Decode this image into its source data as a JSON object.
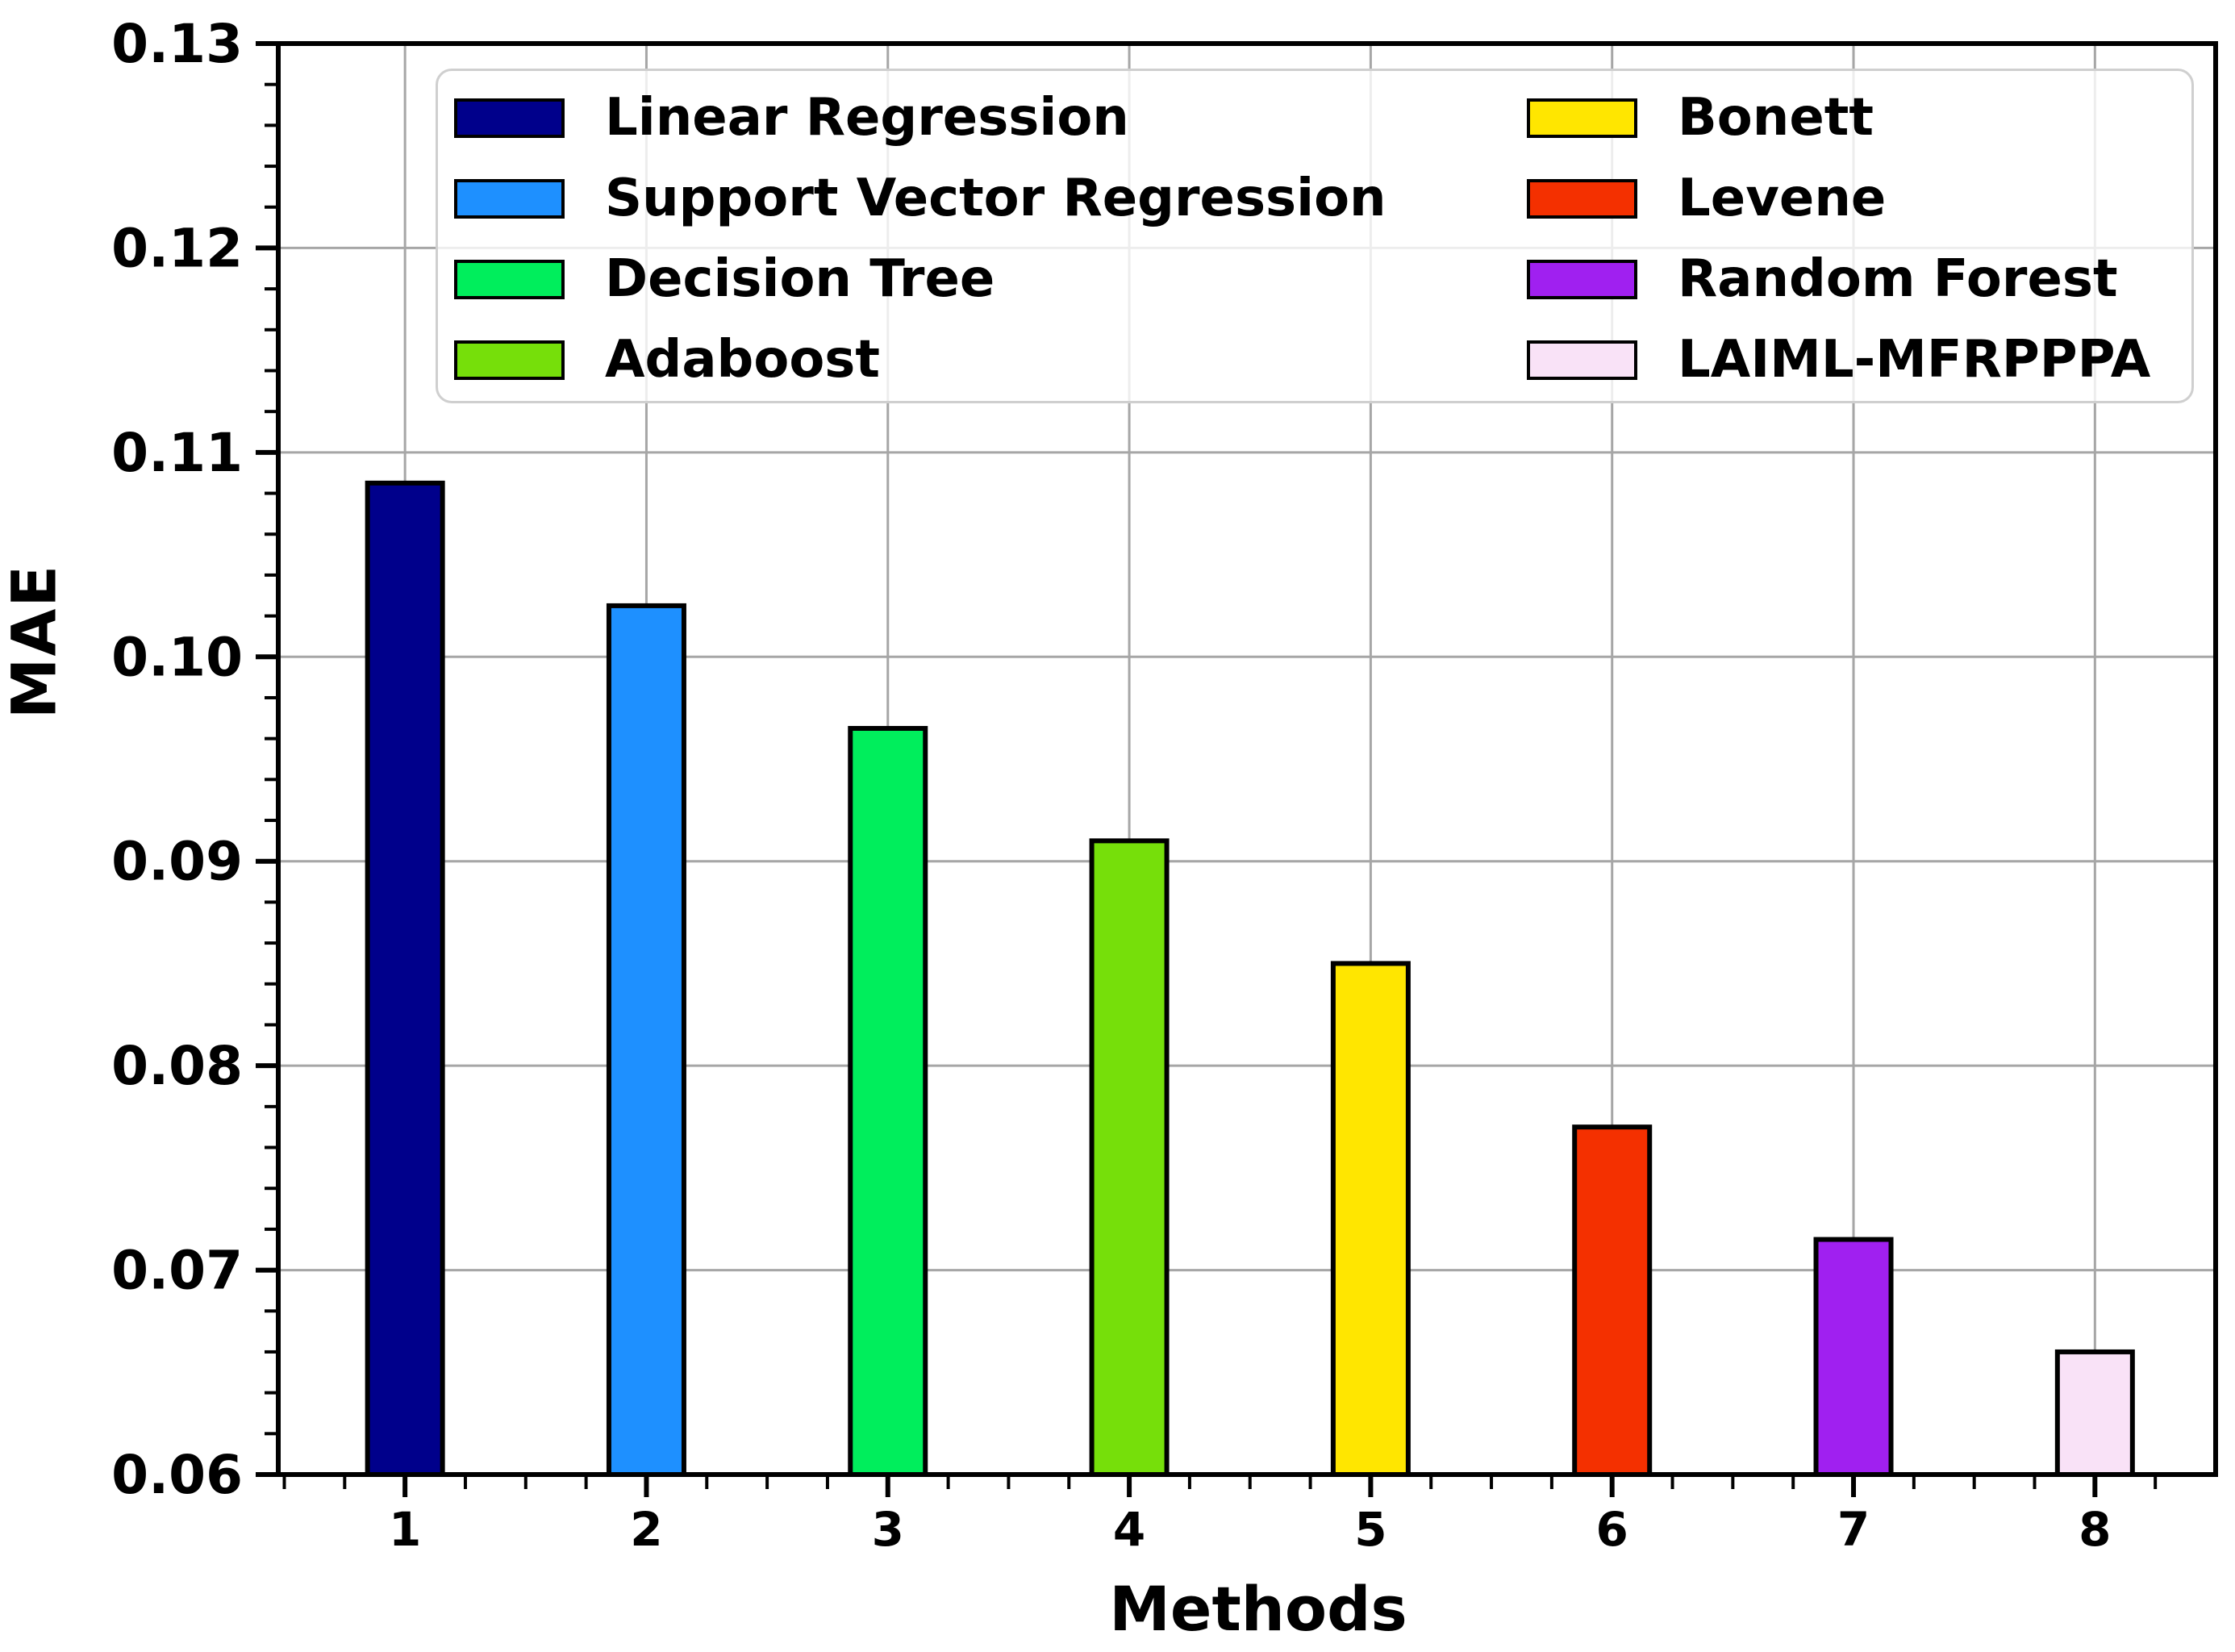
{
  "figure": {
    "background": "#ffffff",
    "text_color": "#000000"
  },
  "chart_data": {
    "type": "bar",
    "title": "",
    "xlabel": "Methods",
    "ylabel": "MAE",
    "categories": [
      "1",
      "2",
      "3",
      "4",
      "5",
      "6",
      "7",
      "8"
    ],
    "y_tick_labels": [
      "0.06",
      "0.07",
      "0.08",
      "0.09",
      "0.10",
      "0.11",
      "0.12",
      "0.13"
    ],
    "ylim": [
      0.06,
      0.13
    ],
    "y_major_step": 0.01,
    "y_minor_step": 0.002,
    "grid": true,
    "grid_color": "#a6a6a6",
    "bar_edge_color": "#000000",
    "axis_color": "#000000",
    "legend_position": "upper center",
    "legend_columns": 2,
    "series": [
      {
        "name": "Linear Regression",
        "category": "1",
        "value": 0.1085,
        "color": "#00008B"
      },
      {
        "name": "Support Vector Regression",
        "category": "2",
        "value": 0.1025,
        "color": "#1E90FF"
      },
      {
        "name": "Decision Tree",
        "category": "3",
        "value": 0.0965,
        "color": "#00EE5C"
      },
      {
        "name": "Adaboost",
        "category": "4",
        "value": 0.091,
        "color": "#76DF0A"
      },
      {
        "name": "Bonett",
        "category": "5",
        "value": 0.085,
        "color": "#FFE600"
      },
      {
        "name": "Levene",
        "category": "6",
        "value": 0.077,
        "color": "#F43000"
      },
      {
        "name": "Random Forest",
        "category": "7",
        "value": 0.0715,
        "color": "#A020F0"
      },
      {
        "name": "LAIML-MFRPPPA",
        "category": "8",
        "value": 0.066,
        "color": "#F9E2F7"
      }
    ]
  }
}
